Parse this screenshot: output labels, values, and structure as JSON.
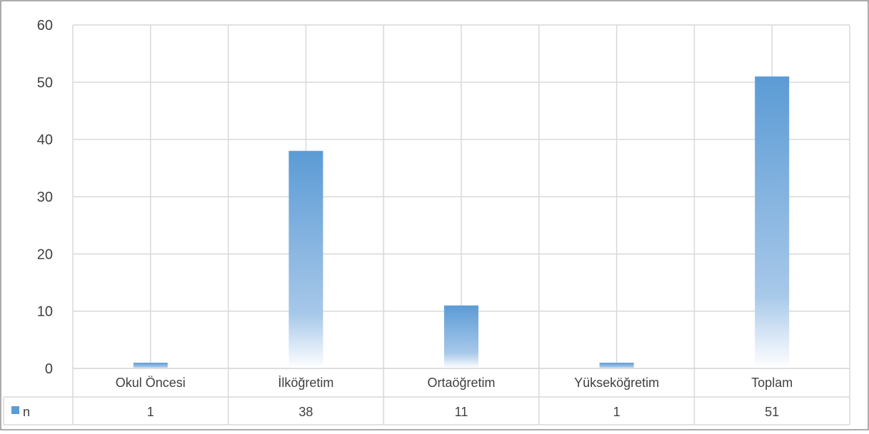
{
  "chart_data": {
    "type": "bar",
    "categories": [
      "Okul Öncesi",
      "İlköğretim",
      "Ortaöğretim",
      "Yükseköğretim",
      "Toplam"
    ],
    "series": [
      {
        "name": "n",
        "values": [
          1,
          38,
          11,
          1,
          51
        ]
      }
    ],
    "data_table": {
      "row_label": "n",
      "cells": [
        "1",
        "38",
        "11",
        "1",
        "51"
      ]
    },
    "y_ticks": [
      "0",
      "10",
      "20",
      "30",
      "40",
      "50",
      "60"
    ],
    "ylim": [
      0,
      60
    ],
    "grid": true,
    "legend": "data-table",
    "colors": {
      "bar_top": "#5b9bd5",
      "bar_bottom": "#ffffff",
      "grid": "#d9d9d9",
      "text": "#404040",
      "border": "#595959"
    }
  }
}
